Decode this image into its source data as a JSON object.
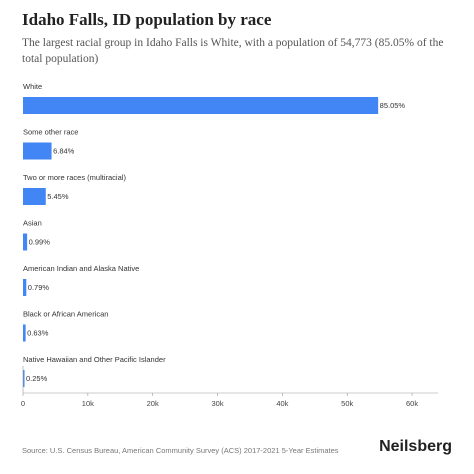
{
  "title": "Idaho Falls, ID population by race",
  "subtitle": "The largest racial group in Idaho Falls is White, with a population of 54,773 (85.05% of the total population)",
  "source": "Source: U.S. Census Bureau, American Community Survey (ACS) 2017-2021 5-Year Estimates",
  "brand": "Neilsberg",
  "chart_data": {
    "type": "bar",
    "orientation": "horizontal",
    "categories": [
      "White",
      "Some other race",
      "Two or more races (multiracial)",
      "Asian",
      "American Indian and Alaska Native",
      "Black or African American",
      "Native Hawaiian and Other Pacific Islander"
    ],
    "values": [
      54773,
      4405,
      3510,
      638,
      509,
      406,
      161
    ],
    "labels": [
      "85.05%",
      "6.84%",
      "5.45%",
      "0.99%",
      "0.79%",
      "0.63%",
      "0.25%"
    ],
    "xticks": [
      0,
      10000,
      20000,
      30000,
      40000,
      50000,
      60000
    ],
    "xtick_labels": [
      "0",
      "10k",
      "20k",
      "30k",
      "40k",
      "50k",
      "60k"
    ],
    "xlim": [
      0,
      64000
    ],
    "bar_color": "#4285f4",
    "grid": false
  }
}
